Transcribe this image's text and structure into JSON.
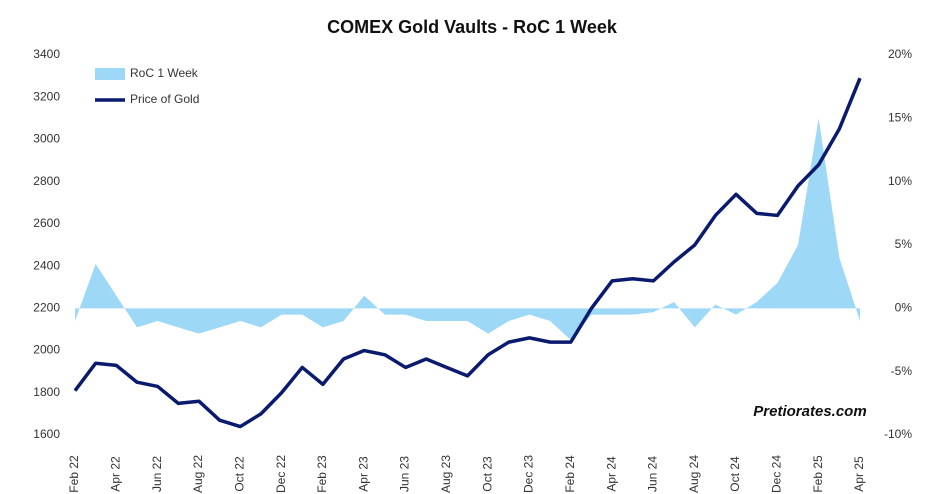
{
  "chart_data": {
    "type": "line",
    "title": "COMEX Gold Vaults - RoC 1 Week",
    "watermark": "Pretiorates.com",
    "categories": [
      "Feb 22",
      null,
      "Apr 22",
      null,
      "Jun 22",
      null,
      "Aug 22",
      null,
      "Oct 22",
      null,
      "Dec 22",
      null,
      "Feb 23",
      null,
      "Apr 23",
      null,
      "Jun 23",
      null,
      "Aug 23",
      null,
      "Oct 23",
      null,
      "Dec 23",
      null,
      "Feb 24",
      null,
      "Apr 24",
      null,
      "Jun 24",
      null,
      "Aug 24",
      null,
      "Oct 24",
      null,
      "Dec 24",
      null,
      "Feb 25",
      null,
      "Apr 25"
    ],
    "series": [
      {
        "name": "RoC 1 Week",
        "type": "area",
        "axis": "y2",
        "color": "#9dd8f7",
        "values": [
          -1,
          3.5,
          1,
          -1.5,
          -1,
          -1.5,
          -2,
          -1.5,
          -1,
          -1.5,
          -0.5,
          -0.5,
          -1.5,
          -1,
          1,
          -0.5,
          -0.5,
          -1,
          -1,
          -1,
          -2,
          -1,
          -0.5,
          -1,
          -2.5,
          -0.5,
          -0.5,
          -0.5,
          -0.3,
          0.5,
          -1.5,
          0.3,
          -0.5,
          0.5,
          2,
          5,
          15,
          4,
          -1
        ]
      },
      {
        "name": "Price of Gold",
        "type": "line",
        "axis": "y",
        "color": "#0a1a6e",
        "values": [
          1810,
          1940,
          1930,
          1850,
          1830,
          1750,
          1760,
          1670,
          1640,
          1700,
          1800,
          1920,
          1840,
          1960,
          2000,
          1980,
          1920,
          1960,
          1920,
          1880,
          1980,
          2040,
          2060,
          2040,
          2040,
          2200,
          2330,
          2340,
          2330,
          2420,
          2500,
          2640,
          2740,
          2650,
          2640,
          2780,
          2880,
          3050,
          3290
        ]
      }
    ],
    "ylim": [
      1600,
      3400
    ],
    "yticks": [
      1600,
      1800,
      2000,
      2200,
      2400,
      2600,
      2800,
      3000,
      3200,
      3400
    ],
    "y2lim": [
      -10,
      20
    ],
    "y2ticks": [
      {
        "value": -10,
        "label": "-10%"
      },
      {
        "value": -5,
        "label": "-5%"
      },
      {
        "value": 0,
        "label": "0%"
      },
      {
        "value": 5,
        "label": "5%"
      },
      {
        "value": 10,
        "label": "10%"
      },
      {
        "value": 15,
        "label": "15%"
      },
      {
        "value": 20,
        "label": "20%"
      }
    ],
    "legend": "top-left"
  }
}
